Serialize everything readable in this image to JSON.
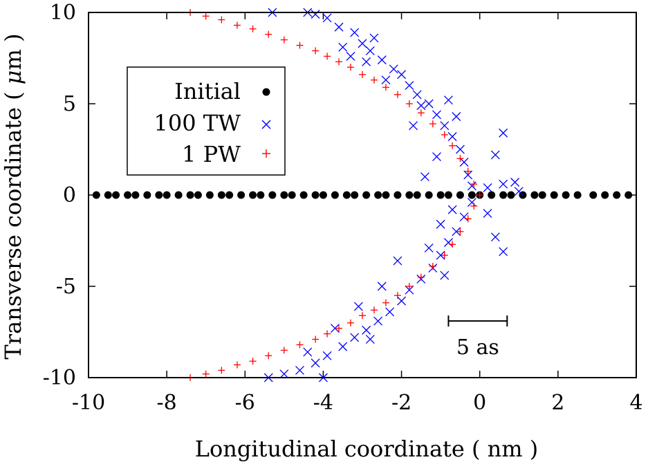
{
  "chart_data": {
    "type": "scatter",
    "title": "",
    "xlabel": "Longitudinal coordinate ( nm )",
    "ylabel_prefix": "Transverse coordinate ( ",
    "ylabel_unit": "μ",
    "ylabel_suffix": "m )",
    "xlim": [
      -10,
      4
    ],
    "ylim": [
      -10,
      10
    ],
    "xticks": [
      -10,
      -8,
      -6,
      -4,
      -2,
      0,
      2,
      4
    ],
    "yticks": [
      -10,
      -5,
      0,
      5,
      10
    ],
    "legend_position": "upper-left",
    "series": [
      {
        "name": "Initial",
        "marker": "filled-circle",
        "color": "#000000",
        "description": "points along y = 0 spread over x from about -9.8 to 3.8 nm",
        "points": [
          [
            -9.8,
            0
          ],
          [
            -9.5,
            0
          ],
          [
            -9.3,
            0
          ],
          [
            -9.0,
            0
          ],
          [
            -8.8,
            0
          ],
          [
            -8.5,
            0
          ],
          [
            -8.2,
            0
          ],
          [
            -8.0,
            0
          ],
          [
            -7.7,
            0
          ],
          [
            -7.4,
            0
          ],
          [
            -7.2,
            0
          ],
          [
            -6.9,
            0
          ],
          [
            -6.6,
            0
          ],
          [
            -6.4,
            0
          ],
          [
            -6.1,
            0
          ],
          [
            -5.8,
            0
          ],
          [
            -5.6,
            0
          ],
          [
            -5.3,
            0
          ],
          [
            -5.0,
            0
          ],
          [
            -4.8,
            0
          ],
          [
            -4.5,
            0
          ],
          [
            -4.2,
            0
          ],
          [
            -4.0,
            0
          ],
          [
            -3.7,
            0
          ],
          [
            -3.4,
            0
          ],
          [
            -3.2,
            0
          ],
          [
            -2.9,
            0
          ],
          [
            -2.6,
            0
          ],
          [
            -2.4,
            0
          ],
          [
            -2.1,
            0
          ],
          [
            -1.8,
            0
          ],
          [
            -1.6,
            0
          ],
          [
            -1.3,
            0
          ],
          [
            -1.0,
            0
          ],
          [
            -0.8,
            0
          ],
          [
            -0.5,
            0
          ],
          [
            -0.2,
            0
          ],
          [
            0.0,
            0
          ],
          [
            0.3,
            0
          ],
          [
            0.6,
            0
          ],
          [
            0.8,
            0
          ],
          [
            1.1,
            0
          ],
          [
            1.4,
            0
          ],
          [
            1.6,
            0
          ],
          [
            1.9,
            0
          ],
          [
            2.2,
            0
          ],
          [
            2.5,
            0
          ],
          [
            2.9,
            0
          ],
          [
            3.2,
            0
          ],
          [
            3.5,
            0
          ],
          [
            3.8,
            0
          ]
        ]
      },
      {
        "name": "100 TW",
        "marker": "x",
        "color": "#0000ff",
        "points": [
          [
            -5.3,
            10
          ],
          [
            -4.4,
            10
          ],
          [
            -4.2,
            9.9
          ],
          [
            -3.9,
            9.7
          ],
          [
            -3.6,
            9.2
          ],
          [
            -3.2,
            8.9
          ],
          [
            -3.0,
            8.3
          ],
          [
            -2.8,
            7.9
          ],
          [
            -2.5,
            7.4
          ],
          [
            -2.2,
            6.9
          ],
          [
            -2.0,
            6.6
          ],
          [
            -1.8,
            6.0
          ],
          [
            -1.6,
            5.5
          ],
          [
            -1.3,
            5.0
          ],
          [
            -1.1,
            4.4
          ],
          [
            -0.9,
            3.8
          ],
          [
            -0.7,
            3.2
          ],
          [
            -0.5,
            2.5
          ],
          [
            -0.4,
            1.8
          ],
          [
            -0.3,
            1.1
          ],
          [
            -0.2,
            0.5
          ],
          [
            0.2,
            0.4
          ],
          [
            0.6,
            0.6
          ],
          [
            1.0,
            0.2
          ],
          [
            0.4,
            2.2
          ],
          [
            0.6,
            3.4
          ],
          [
            -1.1,
            2.1
          ],
          [
            -1.4,
            1.0
          ],
          [
            -1.7,
            3.8
          ],
          [
            -2.4,
            6.3
          ],
          [
            -3.3,
            7.6
          ],
          [
            -3.5,
            8.1
          ],
          [
            -2.7,
            8.6
          ],
          [
            -1.5,
            4.9
          ],
          [
            -0.8,
            5.2
          ],
          [
            -0.6,
            4.3
          ],
          [
            -2.9,
            7.3
          ],
          [
            -0.2,
            -0.4
          ],
          [
            -0.4,
            -1.2
          ],
          [
            -0.6,
            -2.0
          ],
          [
            -0.8,
            -2.6
          ],
          [
            -1.0,
            -3.3
          ],
          [
            -1.2,
            -4.0
          ],
          [
            -1.5,
            -4.6
          ],
          [
            -1.8,
            -5.2
          ],
          [
            -2.0,
            -5.8
          ],
          [
            -2.3,
            -6.4
          ],
          [
            -2.6,
            -6.9
          ],
          [
            -2.9,
            -7.4
          ],
          [
            -3.2,
            -7.8
          ],
          [
            -3.5,
            -8.3
          ],
          [
            -3.9,
            -8.8
          ],
          [
            -4.2,
            -9.2
          ],
          [
            -4.6,
            -9.6
          ],
          [
            -5.0,
            -9.8
          ],
          [
            -5.4,
            -10
          ],
          [
            -4.0,
            -10
          ],
          [
            0.2,
            -1.0
          ],
          [
            0.4,
            -2.3
          ],
          [
            0.6,
            -3.1
          ],
          [
            -1.3,
            -2.9
          ],
          [
            -1.0,
            -1.6
          ],
          [
            -2.1,
            -3.6
          ],
          [
            -2.5,
            -5.0
          ],
          [
            -3.1,
            -6.1
          ],
          [
            -2.8,
            -7.9
          ],
          [
            -3.7,
            -7.3
          ],
          [
            -4.4,
            -8.6
          ],
          [
            -0.9,
            -4.4
          ],
          [
            0.9,
            0.7
          ],
          [
            -0.7,
            -0.8
          ]
        ]
      },
      {
        "name": "1 PW",
        "marker": "plus",
        "color": "#ff0000",
        "points": [
          [
            -7.4,
            10
          ],
          [
            -7.0,
            9.8
          ],
          [
            -6.6,
            9.6
          ],
          [
            -6.2,
            9.3
          ],
          [
            -5.8,
            9.1
          ],
          [
            -5.4,
            8.8
          ],
          [
            -5.0,
            8.5
          ],
          [
            -4.6,
            8.2
          ],
          [
            -4.2,
            7.9
          ],
          [
            -3.9,
            7.6
          ],
          [
            -3.6,
            7.3
          ],
          [
            -3.3,
            7.0
          ],
          [
            -3.0,
            6.6
          ],
          [
            -2.7,
            6.3
          ],
          [
            -2.4,
            5.9
          ],
          [
            -2.1,
            5.5
          ],
          [
            -1.8,
            5.0
          ],
          [
            -1.5,
            4.5
          ],
          [
            -1.2,
            3.9
          ],
          [
            -0.9,
            3.3
          ],
          [
            -0.7,
            2.7
          ],
          [
            -0.5,
            2.0
          ],
          [
            -0.3,
            1.3
          ],
          [
            -0.15,
            0.6
          ],
          [
            0.0,
            0.0
          ],
          [
            -0.15,
            -0.6
          ],
          [
            -0.3,
            -1.3
          ],
          [
            -0.5,
            -2.0
          ],
          [
            -0.7,
            -2.7
          ],
          [
            -0.9,
            -3.3
          ],
          [
            -1.2,
            -3.9
          ],
          [
            -1.5,
            -4.5
          ],
          [
            -1.8,
            -5.0
          ],
          [
            -2.1,
            -5.5
          ],
          [
            -2.4,
            -5.9
          ],
          [
            -2.7,
            -6.3
          ],
          [
            -3.0,
            -6.6
          ],
          [
            -3.3,
            -7.0
          ],
          [
            -3.6,
            -7.3
          ],
          [
            -3.9,
            -7.6
          ],
          [
            -4.2,
            -7.9
          ],
          [
            -4.6,
            -8.2
          ],
          [
            -5.0,
            -8.5
          ],
          [
            -5.4,
            -8.8
          ],
          [
            -5.8,
            -9.1
          ],
          [
            -6.2,
            -9.3
          ],
          [
            -6.6,
            -9.6
          ],
          [
            -7.0,
            -9.8
          ],
          [
            -7.4,
            -10
          ]
        ]
      }
    ],
    "annotation": {
      "label": "5 as",
      "x_start": -0.8,
      "x_end": 0.7,
      "y": -6.9
    }
  }
}
